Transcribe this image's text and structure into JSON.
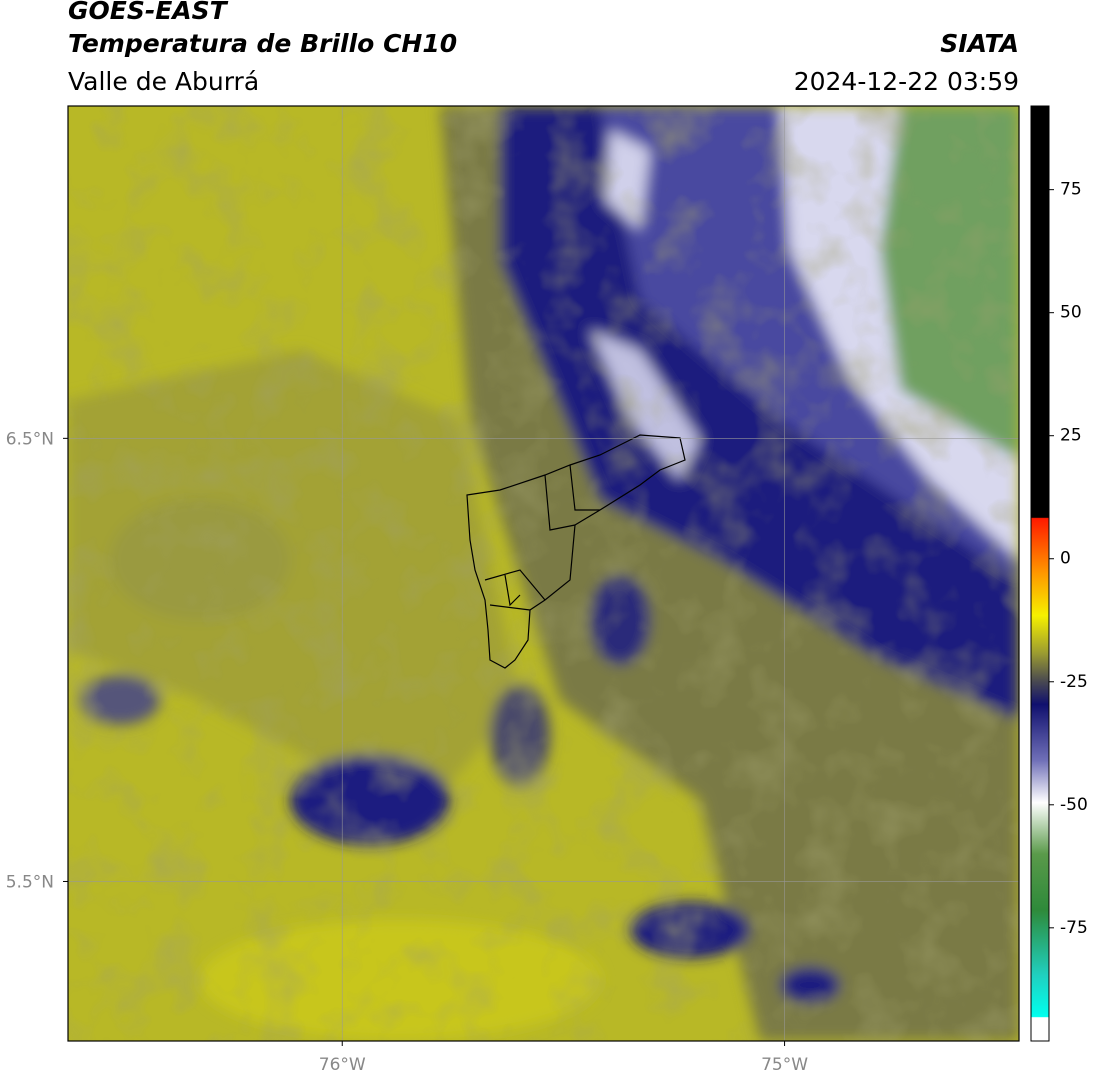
{
  "header": {
    "title": "GOES-EAST",
    "subtitle": "Temperatura de Brillo CH10",
    "region": "Valle de Aburrá",
    "source": "SIATA",
    "datetime": "2024-12-22 03:59"
  },
  "map": {
    "ylim": [
      5.14,
      7.25
    ],
    "xlim": [
      -76.62,
      -74.47
    ],
    "yticks": [
      {
        "value": 6.5,
        "label": "6.5°N"
      },
      {
        "value": 5.5,
        "label": "5.5°N"
      }
    ],
    "xticks": [
      {
        "value": -76,
        "label": "76°W"
      },
      {
        "value": -75,
        "label": "75°W"
      }
    ],
    "grid": true
  },
  "colorbar": {
    "lim": [
      -98,
      92
    ],
    "ticks": [
      75,
      50,
      25,
      0,
      -25,
      -50,
      -75
    ]
  }
}
